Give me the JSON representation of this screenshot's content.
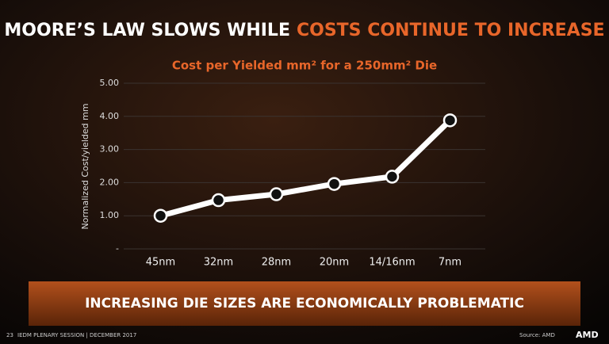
{
  "slide": {
    "title_white": "MOORE’S LAW SLOWS WHILE",
    "title_orange": "COSTS CONTINUE TO INCREASE",
    "banner": "INCREASING DIE SIZES ARE ECONOMICALLY PROBLEMATIC",
    "page_number": "23",
    "footer": "IEDM PLENARY SESSION | DECEMBER 2017",
    "source": "Source: AMD",
    "logo": "AMD"
  },
  "chart_data": {
    "type": "line",
    "title": "Cost per Yielded mm² for a 250mm² Die",
    "y_label": "Normalized Cost/yielded mm",
    "categories": [
      "45nm",
      "32nm",
      "28nm",
      "20nm",
      "14/16nm",
      "7nm"
    ],
    "values": [
      1.0,
      1.47,
      1.65,
      1.96,
      2.18,
      3.88
    ],
    "color": "#ffffff",
    "ylim": [
      0,
      5
    ],
    "yticks": [
      {
        "value": 0,
        "label": "-"
      },
      {
        "value": 1,
        "label": "1.00"
      },
      {
        "value": 2,
        "label": "2.00"
      },
      {
        "value": 3,
        "label": "3.00"
      },
      {
        "value": 4,
        "label": "4.00"
      },
      {
        "value": 5,
        "label": "5.00"
      }
    ],
    "grid": true
  }
}
